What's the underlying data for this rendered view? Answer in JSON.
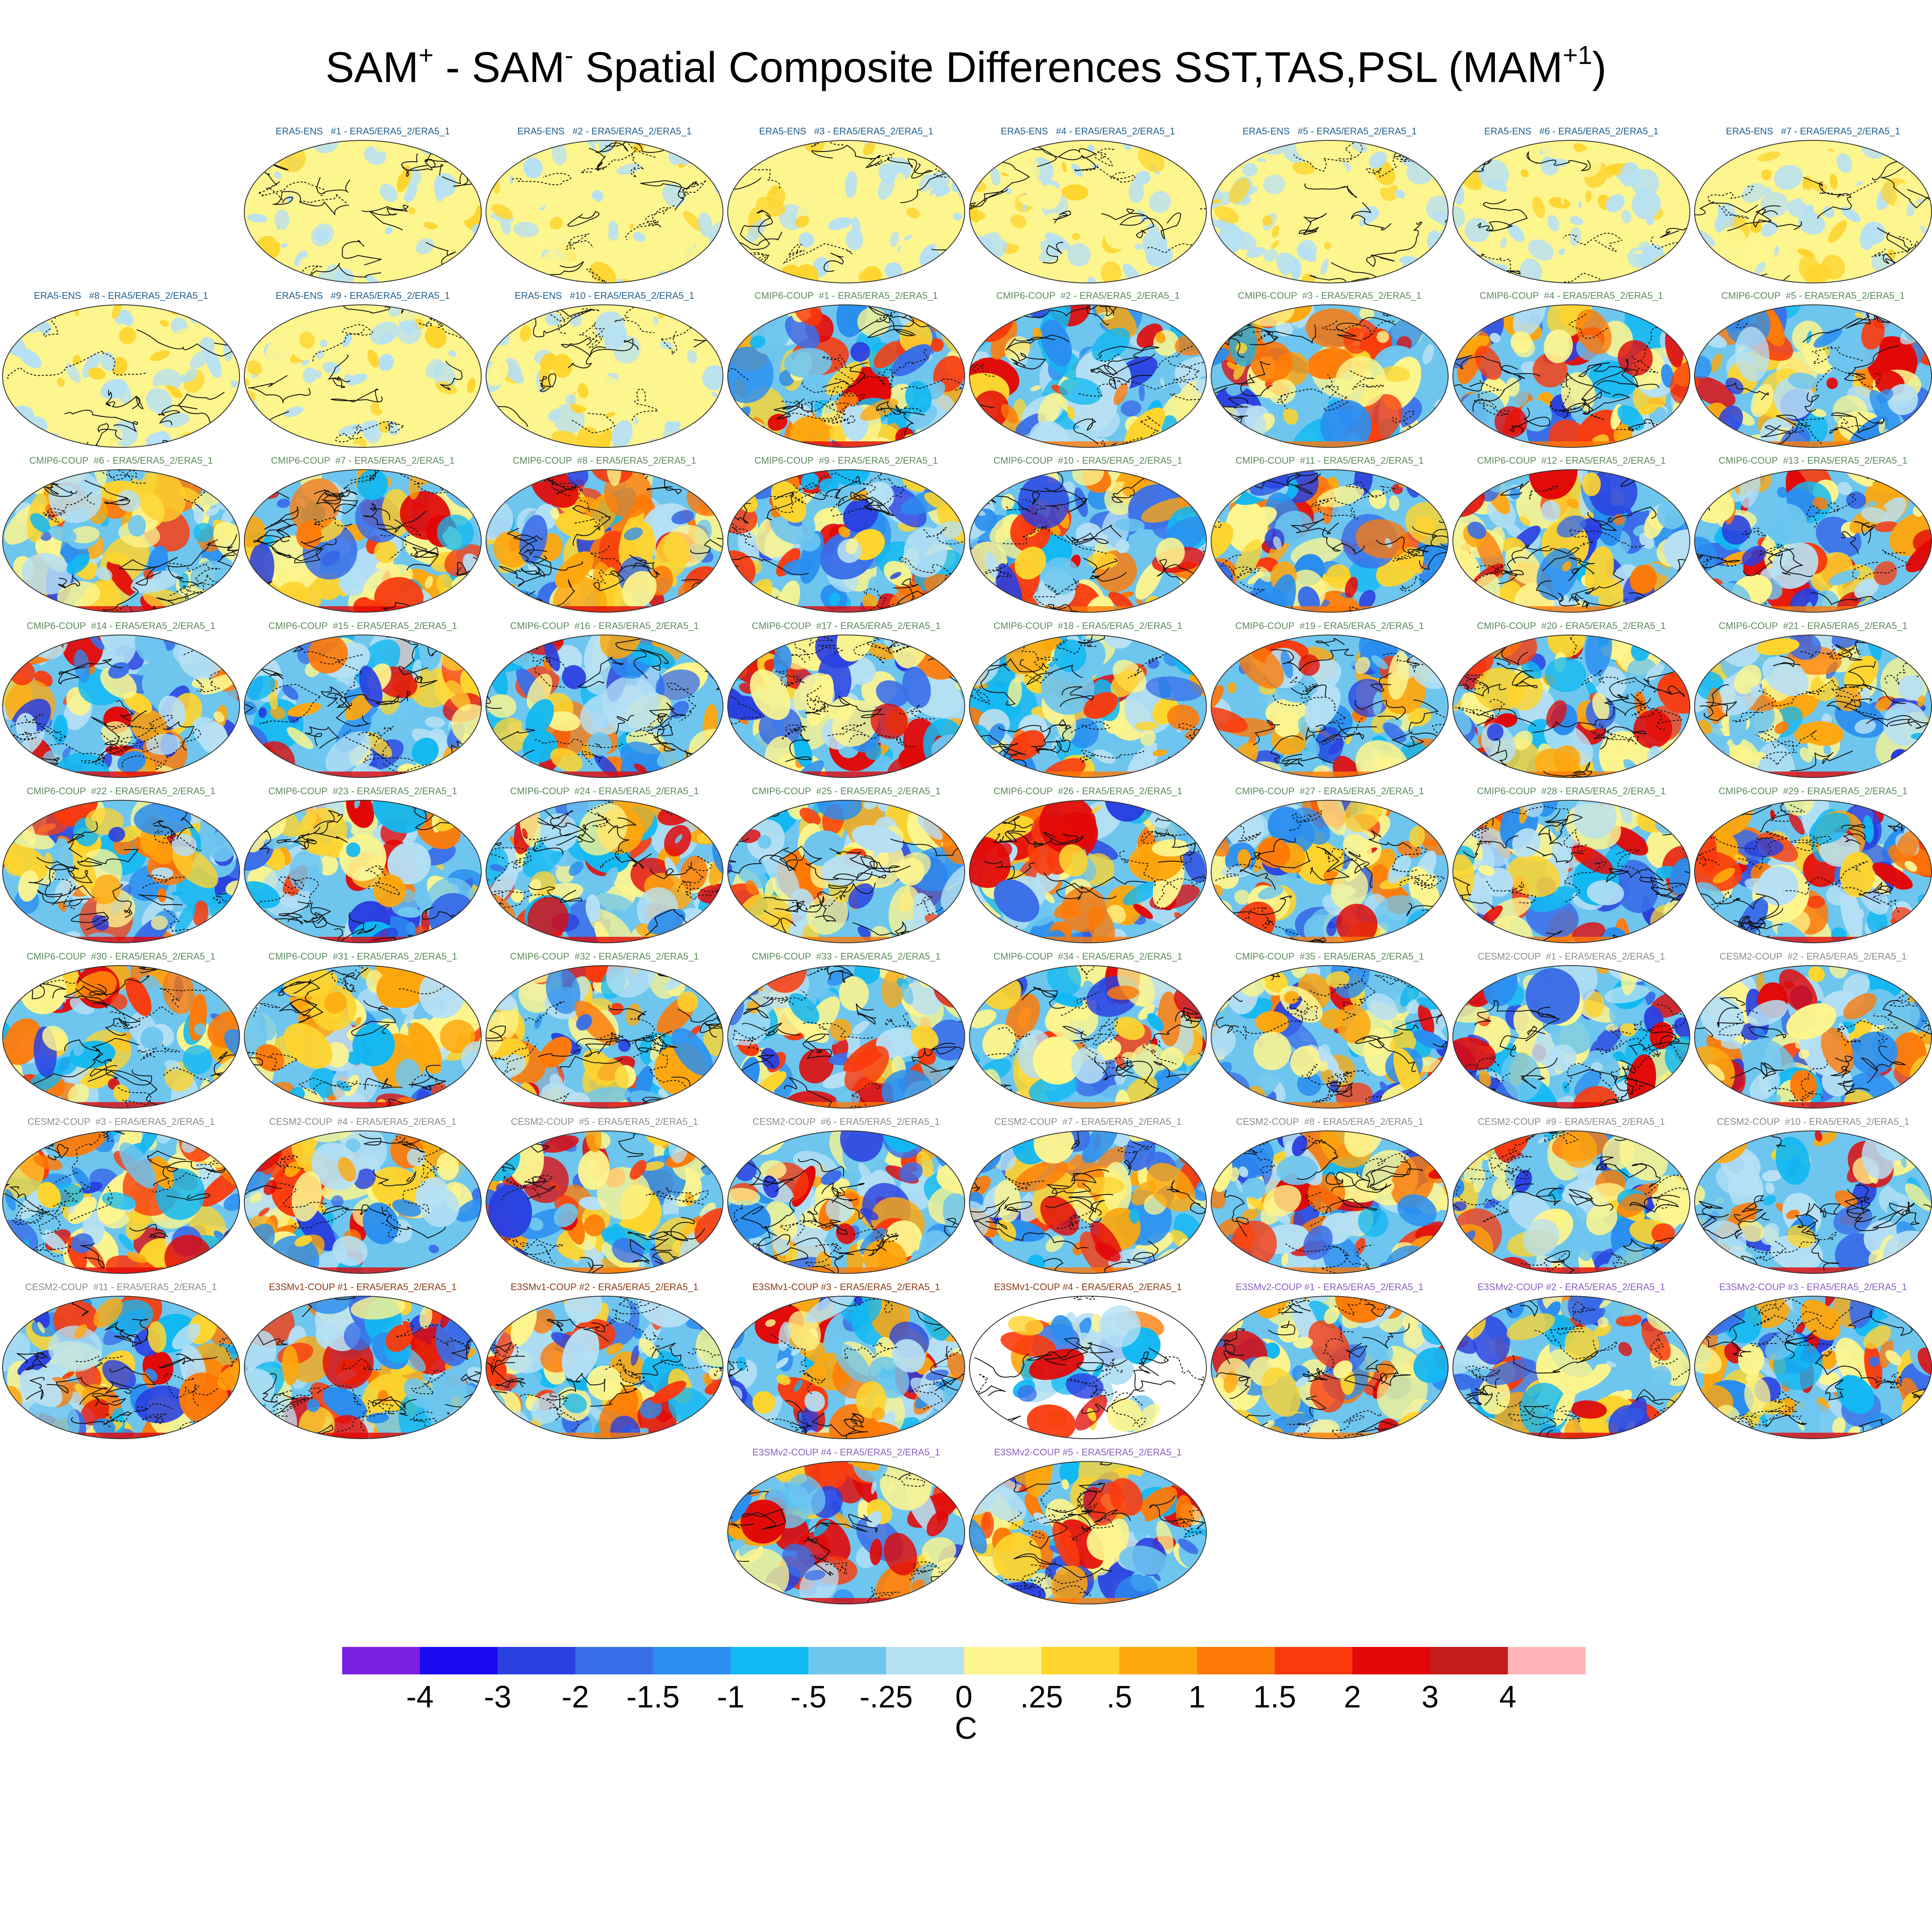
{
  "title": {
    "part1": "SAM",
    "sup1": "+",
    "part2": " - SAM",
    "sup2": "-",
    "part3": " Spatial Composite Differences SST,TAS,PSL (MAM",
    "sup3": "+1",
    "part4": ")"
  },
  "panel_suffix": " - ERA5/ERA5_2/ERA5_1",
  "group_colors": {
    "ERA5-ENS": "#1f5f8f",
    "CMIP6-COUP": "#5c8a5c",
    "CESM2-COUP": "#8c8c8c",
    "E3SMv1-COUP": "#8b3a12",
    "E3SMv2-COUP": "#8a5fc0"
  },
  "panels": [
    {
      "group": "ERA5-ENS",
      "label": "ERA5-ENS   #1 - ERA5/ERA5_2/ERA5_1"
    },
    {
      "group": "ERA5-ENS",
      "label": "ERA5-ENS   #2 - ERA5/ERA5_2/ERA5_1"
    },
    {
      "group": "ERA5-ENS",
      "label": "ERA5-ENS   #3 - ERA5/ERA5_2/ERA5_1"
    },
    {
      "group": "ERA5-ENS",
      "label": "ERA5-ENS   #4 - ERA5/ERA5_2/ERA5_1"
    },
    {
      "group": "ERA5-ENS",
      "label": "ERA5-ENS   #5 - ERA5/ERA5_2/ERA5_1"
    },
    {
      "group": "ERA5-ENS",
      "label": "ERA5-ENS   #6 - ERA5/ERA5_2/ERA5_1"
    },
    {
      "group": "ERA5-ENS",
      "label": "ERA5-ENS   #7 - ERA5/ERA5_2/ERA5_1"
    },
    {
      "group": "ERA5-ENS",
      "label": "ERA5-ENS   #8 - ERA5/ERA5_2/ERA5_1"
    },
    {
      "group": "ERA5-ENS",
      "label": "ERA5-ENS   #9 - ERA5/ERA5_2/ERA5_1"
    },
    {
      "group": "ERA5-ENS",
      "label": "ERA5-ENS   #10 - ERA5/ERA5_2/ERA5_1"
    },
    {
      "group": "CMIP6-COUP",
      "label": "CMIP6-COUP  #1 - ERA5/ERA5_2/ERA5_1"
    },
    {
      "group": "CMIP6-COUP",
      "label": "CMIP6-COUP  #2 - ERA5/ERA5_2/ERA5_1"
    },
    {
      "group": "CMIP6-COUP",
      "label": "CMIP6-COUP  #3 - ERA5/ERA5_2/ERA5_1"
    },
    {
      "group": "CMIP6-COUP",
      "label": "CMIP6-COUP  #4 - ERA5/ERA5_2/ERA5_1"
    },
    {
      "group": "CMIP6-COUP",
      "label": "CMIP6-COUP  #5 - ERA5/ERA5_2/ERA5_1"
    },
    {
      "group": "CMIP6-COUP",
      "label": "CMIP6-COUP  #6 - ERA5/ERA5_2/ERA5_1"
    },
    {
      "group": "CMIP6-COUP",
      "label": "CMIP6-COUP  #7 - ERA5/ERA5_2/ERA5_1"
    },
    {
      "group": "CMIP6-COUP",
      "label": "CMIP6-COUP  #8 - ERA5/ERA5_2/ERA5_1"
    },
    {
      "group": "CMIP6-COUP",
      "label": "CMIP6-COUP  #9 - ERA5/ERA5_2/ERA5_1"
    },
    {
      "group": "CMIP6-COUP",
      "label": "CMIP6-COUP  #10 - ERA5/ERA5_2/ERA5_1"
    },
    {
      "group": "CMIP6-COUP",
      "label": "CMIP6-COUP  #11 - ERA5/ERA5_2/ERA5_1"
    },
    {
      "group": "CMIP6-COUP",
      "label": "CMIP6-COUP  #12 - ERA5/ERA5_2/ERA5_1"
    },
    {
      "group": "CMIP6-COUP",
      "label": "CMIP6-COUP  #13 - ERA5/ERA5_2/ERA5_1"
    },
    {
      "group": "CMIP6-COUP",
      "label": "CMIP6-COUP  #14 - ERA5/ERA5_2/ERA5_1"
    },
    {
      "group": "CMIP6-COUP",
      "label": "CMIP6-COUP  #15 - ERA5/ERA5_2/ERA5_1"
    },
    {
      "group": "CMIP6-COUP",
      "label": "CMIP6-COUP  #16 - ERA5/ERA5_2/ERA5_1"
    },
    {
      "group": "CMIP6-COUP",
      "label": "CMIP6-COUP  #17 - ERA5/ERA5_2/ERA5_1"
    },
    {
      "group": "CMIP6-COUP",
      "label": "CMIP6-COUP  #18 - ERA5/ERA5_2/ERA5_1"
    },
    {
      "group": "CMIP6-COUP",
      "label": "CMIP6-COUP  #19 - ERA5/ERA5_2/ERA5_1"
    },
    {
      "group": "CMIP6-COUP",
      "label": "CMIP6-COUP  #20 - ERA5/ERA5_2/ERA5_1"
    },
    {
      "group": "CMIP6-COUP",
      "label": "CMIP6-COUP  #21 - ERA5/ERA5_2/ERA5_1"
    },
    {
      "group": "CMIP6-COUP",
      "label": "CMIP6-COUP  #22 - ERA5/ERA5_2/ERA5_1"
    },
    {
      "group": "CMIP6-COUP",
      "label": "CMIP6-COUP  #23 - ERA5/ERA5_2/ERA5_1"
    },
    {
      "group": "CMIP6-COUP",
      "label": "CMIP6-COUP  #24 - ERA5/ERA5_2/ERA5_1"
    },
    {
      "group": "CMIP6-COUP",
      "label": "CMIP6-COUP  #25 - ERA5/ERA5_2/ERA5_1"
    },
    {
      "group": "CMIP6-COUP",
      "label": "CMIP6-COUP  #26 - ERA5/ERA5_2/ERA5_1"
    },
    {
      "group": "CMIP6-COUP",
      "label": "CMIP6-COUP  #27 - ERA5/ERA5_2/ERA5_1"
    },
    {
      "group": "CMIP6-COUP",
      "label": "CMIP6-COUP  #28 - ERA5/ERA5_2/ERA5_1"
    },
    {
      "group": "CMIP6-COUP",
      "label": "CMIP6-COUP  #29 - ERA5/ERA5_2/ERA5_1"
    },
    {
      "group": "CMIP6-COUP",
      "label": "CMIP6-COUP  #30 - ERA5/ERA5_2/ERA5_1"
    },
    {
      "group": "CMIP6-COUP",
      "label": "CMIP6-COUP  #31 - ERA5/ERA5_2/ERA5_1"
    },
    {
      "group": "CMIP6-COUP",
      "label": "CMIP6-COUP  #32 - ERA5/ERA5_2/ERA5_1"
    },
    {
      "group": "CMIP6-COUP",
      "label": "CMIP6-COUP  #33 - ERA5/ERA5_2/ERA5_1"
    },
    {
      "group": "CMIP6-COUP",
      "label": "CMIP6-COUP  #34 - ERA5/ERA5_2/ERA5_1"
    },
    {
      "group": "CMIP6-COUP",
      "label": "CMIP6-COUP  #35 - ERA5/ERA5_2/ERA5_1"
    },
    {
      "group": "CESM2-COUP",
      "label": "CESM2-COUP  #1 - ERA5/ERA5_2/ERA5_1"
    },
    {
      "group": "CESM2-COUP",
      "label": "CESM2-COUP  #2 - ERA5/ERA5_2/ERA5_1"
    },
    {
      "group": "CESM2-COUP",
      "label": "CESM2-COUP  #3 - ERA5/ERA5_2/ERA5_1"
    },
    {
      "group": "CESM2-COUP",
      "label": "CESM2-COUP  #4 - ERA5/ERA5_2/ERA5_1"
    },
    {
      "group": "CESM2-COUP",
      "label": "CESM2-COUP  #5 - ERA5/ERA5_2/ERA5_1"
    },
    {
      "group": "CESM2-COUP",
      "label": "CESM2-COUP  #6 - ERA5/ERA5_2/ERA5_1"
    },
    {
      "group": "CESM2-COUP",
      "label": "CESM2-COUP  #7 - ERA5/ERA5_2/ERA5_1"
    },
    {
      "group": "CESM2-COUP",
      "label": "CESM2-COUP  #8 - ERA5/ERA5_2/ERA5_1"
    },
    {
      "group": "CESM2-COUP",
      "label": "CESM2-COUP  #9 - ERA5/ERA5_2/ERA5_1"
    },
    {
      "group": "CESM2-COUP",
      "label": "CESM2-COUP  #10 - ERA5/ERA5_2/ERA5_1"
    },
    {
      "group": "CESM2-COUP",
      "label": "CESM2-COUP  #11 - ERA5/ERA5_2/ERA5_1"
    },
    {
      "group": "E3SMv1-COUP",
      "label": "E3SMv1-COUP #1 - ERA5/ERA5_2/ERA5_1"
    },
    {
      "group": "E3SMv1-COUP",
      "label": "E3SMv1-COUP #2 - ERA5/ERA5_2/ERA5_1"
    },
    {
      "group": "E3SMv1-COUP",
      "label": "E3SMv1-COUP #3 - ERA5/ERA5_2/ERA5_1"
    },
    {
      "group": "E3SMv1-COUP",
      "label": "E3SMv1-COUP #4 - ERA5/ERA5_2/ERA5_1",
      "missing_land": true
    },
    {
      "group": "E3SMv2-COUP",
      "label": "E3SMv2-COUP #1 - ERA5/ERA5_2/ERA5_1"
    },
    {
      "group": "E3SMv2-COUP",
      "label": "E3SMv2-COUP #2 - ERA5/ERA5_2/ERA5_1"
    },
    {
      "group": "E3SMv2-COUP",
      "label": "E3SMv2-COUP #3 - ERA5/ERA5_2/ERA5_1"
    },
    {
      "group": "E3SMv2-COUP",
      "label": "E3SMv2-COUP #4 - ERA5/ERA5_2/ERA5_1"
    },
    {
      "group": "E3SMv2-COUP",
      "label": "E3SMv2-COUP #5 - ERA5/ERA5_2/ERA5_1"
    }
  ],
  "colorbar": {
    "colors": [
      "#7b1fe0",
      "#1a0af0",
      "#2a40e0",
      "#3a6ee8",
      "#2a8ef0",
      "#12b8f2",
      "#6ec6ef",
      "#b6e0f4",
      "#fdf58e",
      "#fed42e",
      "#fea70d",
      "#fe7a07",
      "#fa3a0c",
      "#e20807",
      "#c41a1c",
      "#fcb4b6"
    ],
    "ticks": [
      "-4",
      "-3",
      "-2",
      "-1.5",
      "-1",
      "-.5",
      "-.25",
      "0",
      ".25",
      ".5",
      "1",
      "1.5",
      "2",
      "3",
      "4"
    ],
    "units": "C"
  }
}
